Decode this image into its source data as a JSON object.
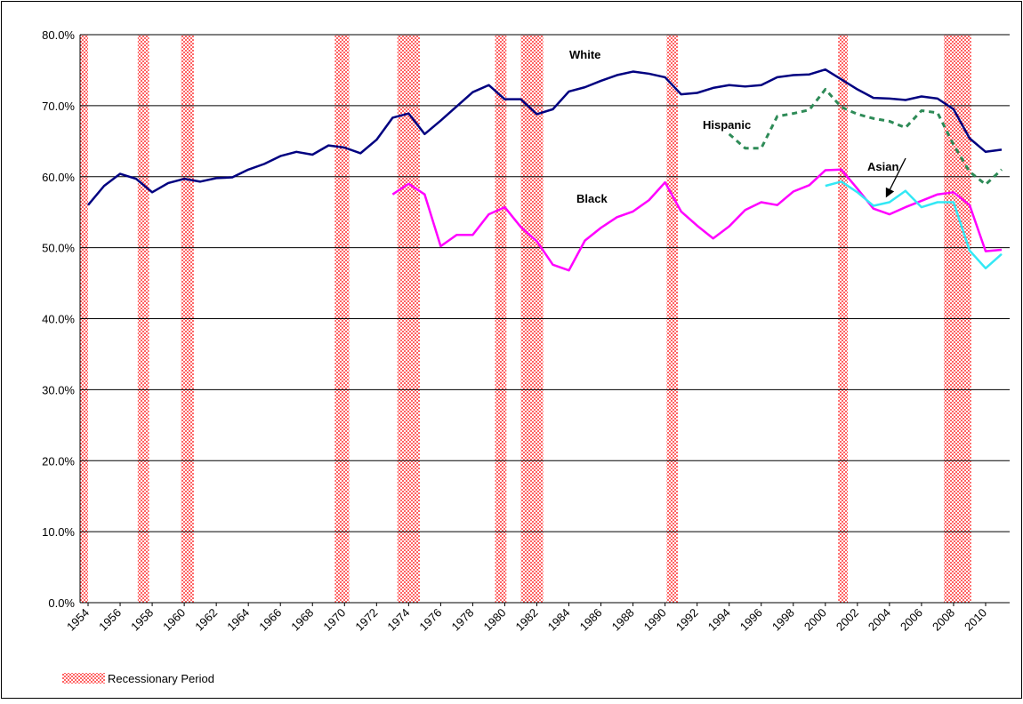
{
  "chart_data": {
    "type": "line",
    "x": [
      1954,
      1955,
      1956,
      1957,
      1958,
      1959,
      1960,
      1961,
      1962,
      1963,
      1964,
      1965,
      1966,
      1967,
      1968,
      1969,
      1970,
      1971,
      1972,
      1973,
      1974,
      1975,
      1976,
      1977,
      1978,
      1979,
      1980,
      1981,
      1982,
      1983,
      1984,
      1985,
      1986,
      1987,
      1988,
      1989,
      1990,
      1991,
      1992,
      1993,
      1994,
      1995,
      1996,
      1997,
      1998,
      1999,
      2000,
      2001,
      2002,
      2003,
      2004,
      2005,
      2006,
      2007,
      2008,
      2009,
      2010,
      2011
    ],
    "series": [
      {
        "name": "White",
        "color": "#000080",
        "style": "solid",
        "values": [
          56.0,
          58.7,
          60.4,
          59.7,
          57.8,
          59.1,
          59.7,
          59.3,
          59.8,
          59.9,
          61.0,
          61.8,
          62.9,
          63.5,
          63.1,
          64.4,
          64.1,
          63.3,
          65.2,
          68.3,
          68.9,
          66.0,
          67.9,
          69.9,
          71.9,
          72.9,
          70.9,
          70.9,
          68.8,
          69.5,
          72.0,
          72.6,
          73.5,
          74.3,
          74.8,
          74.5,
          74.0,
          71.6,
          71.8,
          72.5,
          72.9,
          72.7,
          72.9,
          74.0,
          74.3,
          74.4,
          75.1,
          73.7,
          72.3,
          71.1,
          71.0,
          70.8,
          71.3,
          71.0,
          69.5,
          65.4,
          63.5,
          63.8
        ]
      },
      {
        "name": "Black",
        "color": "#ff00ff",
        "style": "solid",
        "values": [
          null,
          null,
          null,
          null,
          null,
          null,
          null,
          null,
          null,
          null,
          null,
          null,
          null,
          null,
          null,
          null,
          null,
          null,
          null,
          57.5,
          59.0,
          57.5,
          50.2,
          51.8,
          51.8,
          54.7,
          55.7,
          52.9,
          50.9,
          47.6,
          46.8,
          51.0,
          52.8,
          54.3,
          55.1,
          56.7,
          59.2,
          55.1,
          53.1,
          51.3,
          53.0,
          55.3,
          56.4,
          56.0,
          57.9,
          58.8,
          60.9,
          61.0,
          58.3,
          55.5,
          54.7,
          55.7,
          56.6,
          57.5,
          57.8,
          56.0,
          49.5,
          49.7
        ]
      },
      {
        "name": "Hispanic",
        "color": "#2e8b57",
        "style": "dashed",
        "values": [
          null,
          null,
          null,
          null,
          null,
          null,
          null,
          null,
          null,
          null,
          null,
          null,
          null,
          null,
          null,
          null,
          null,
          null,
          null,
          null,
          null,
          null,
          null,
          null,
          null,
          null,
          null,
          null,
          null,
          null,
          null,
          null,
          null,
          null,
          null,
          null,
          null,
          null,
          null,
          null,
          66.0,
          64.0,
          64.0,
          68.5,
          68.9,
          69.4,
          72.3,
          69.8,
          68.8,
          68.2,
          67.8,
          66.9,
          69.3,
          69.0,
          64.5,
          60.7,
          58.9,
          61.0
        ]
      },
      {
        "name": "Asian",
        "color": "#33e8f5",
        "style": "solid",
        "values": [
          null,
          null,
          null,
          null,
          null,
          null,
          null,
          null,
          null,
          null,
          null,
          null,
          null,
          null,
          null,
          null,
          null,
          null,
          null,
          null,
          null,
          null,
          null,
          null,
          null,
          null,
          null,
          null,
          null,
          null,
          null,
          null,
          null,
          null,
          null,
          null,
          null,
          null,
          null,
          null,
          null,
          null,
          null,
          null,
          null,
          null,
          58.7,
          59.3,
          57.8,
          55.9,
          56.4,
          58.0,
          55.7,
          56.4,
          56.4,
          49.6,
          47.1,
          49.1
        ]
      }
    ],
    "recessions": {
      "label": "Recessionary Period",
      "color": "#ff3333",
      "spans": [
        [
          1953.5,
          1954.0
        ],
        [
          1957.1,
          1957.8
        ],
        [
          1959.8,
          1960.6
        ],
        [
          1969.4,
          1970.3
        ],
        [
          1973.3,
          1974.7
        ],
        [
          1979.4,
          1980.1
        ],
        [
          1981.0,
          1982.4
        ],
        [
          1990.1,
          1990.8
        ],
        [
          2000.8,
          2001.4
        ],
        [
          2007.4,
          2009.1
        ]
      ]
    },
    "xlim": [
      1953.5,
      2011.5
    ],
    "xticks": [
      1954,
      1956,
      1958,
      1960,
      1962,
      1964,
      1966,
      1968,
      1970,
      1972,
      1974,
      1976,
      1978,
      1980,
      1982,
      1984,
      1986,
      1988,
      1990,
      1992,
      1994,
      1996,
      1998,
      2000,
      2002,
      2004,
      2006,
      2008,
      2010
    ],
    "ylim": [
      0,
      80
    ],
    "yticks": [
      {
        "value": 0,
        "label": "0.0%"
      },
      {
        "value": 10,
        "label": "10.0%"
      },
      {
        "value": 20,
        "label": "20.0%"
      },
      {
        "value": 30,
        "label": "30.0%"
      },
      {
        "value": 40,
        "label": "40.0%"
      },
      {
        "value": 50,
        "label": "50.0%"
      },
      {
        "value": 60,
        "label": "60.0%"
      },
      {
        "value": 70,
        "label": "70.0%"
      },
      {
        "value": 80,
        "label": "80.0%"
      }
    ],
    "grid": true
  }
}
